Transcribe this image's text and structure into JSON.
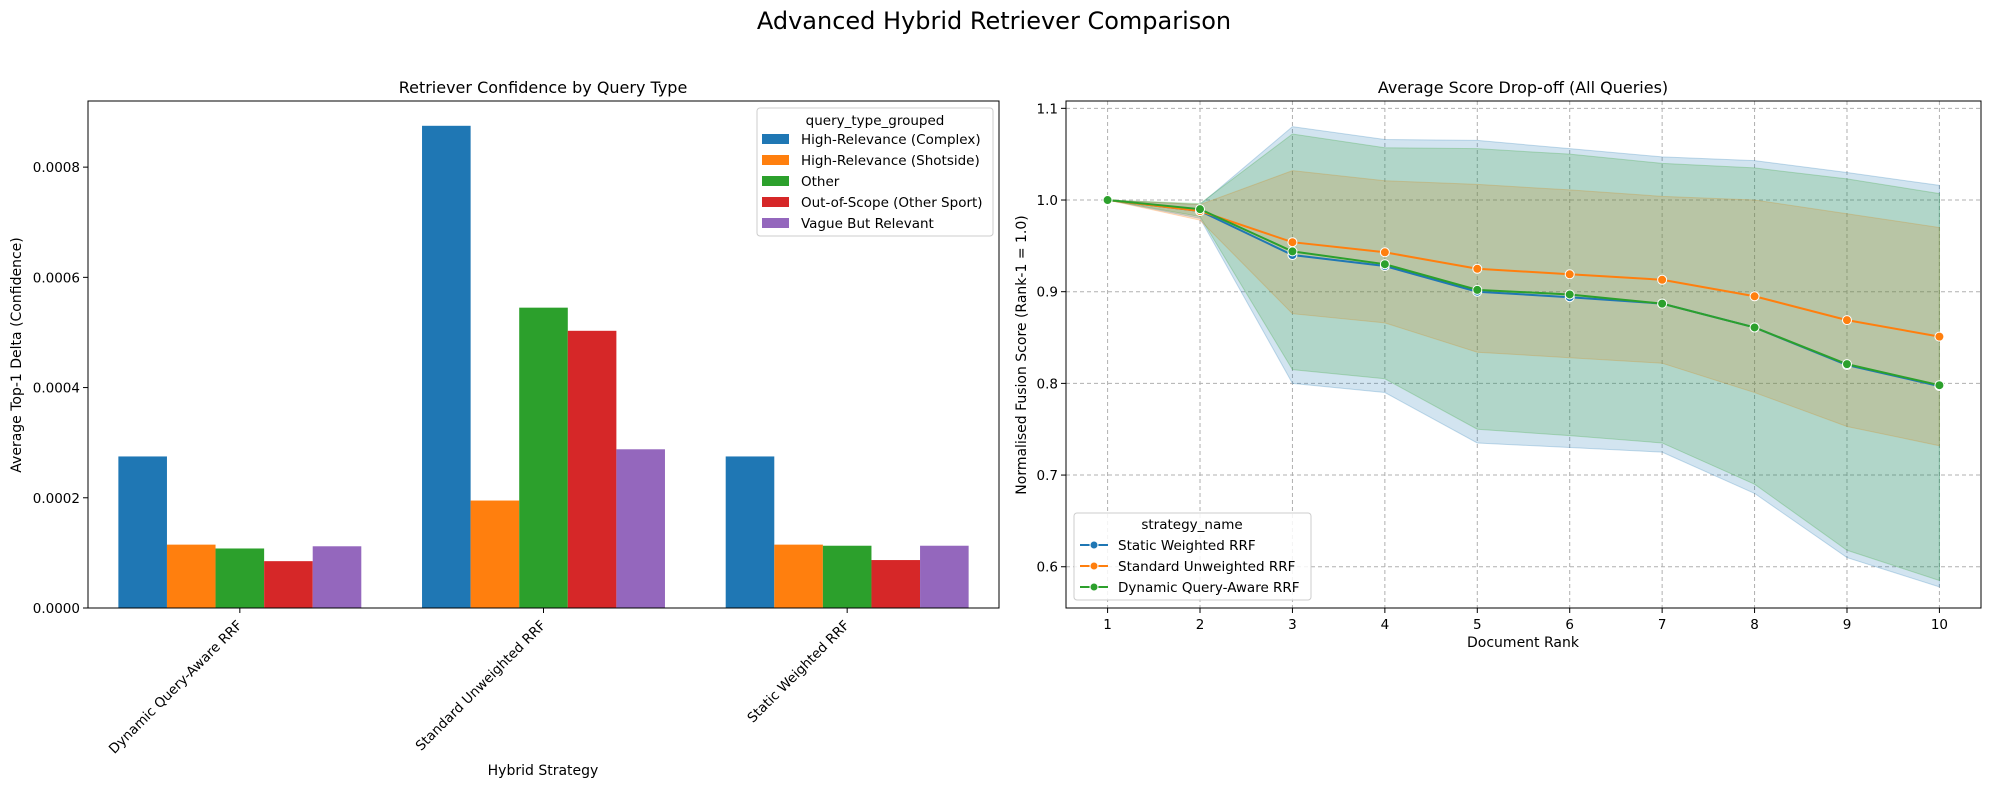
{
  "suptitle": "Advanced Hybrid Retriever Comparison",
  "chart_data": [
    {
      "type": "bar",
      "title": "Retriever Confidence by Query Type",
      "xlabel": "Hybrid Strategy",
      "ylabel": "Average Top-1 Delta (Confidence)",
      "ylim": [
        0,
        0.00092
      ],
      "yticks": [
        0.0,
        0.0002,
        0.0004,
        0.0006,
        0.0008
      ],
      "ytick_labels": [
        "0.0000",
        "0.0002",
        "0.0004",
        "0.0006",
        "0.0008"
      ],
      "categories": [
        "Dynamic Query-Aware RRF",
        "Standard Unweighted RRF",
        "Static Weighted RRF"
      ],
      "legend_title": "query_type_grouped",
      "legend_position": "top-right",
      "grid": false,
      "series": [
        {
          "name": "High-Relevance (Complex)",
          "color": "#1f77b4",
          "values": [
            0.000275,
            0.000875,
            0.000275
          ]
        },
        {
          "name": "High-Relevance (Shotside)",
          "color": "#ff7f0e",
          "values": [
            0.000115,
            0.000195,
            0.000115
          ]
        },
        {
          "name": "Other",
          "color": "#2ca02c",
          "values": [
            0.000108,
            0.000545,
            0.000113
          ]
        },
        {
          "name": "Out-of-Scope (Other Sport)",
          "color": "#d62728",
          "values": [
            8.5e-05,
            0.000503,
            8.7e-05
          ]
        },
        {
          "name": "Vague But Relevant",
          "color": "#9467bd",
          "values": [
            0.000112,
            0.000288,
            0.000113
          ]
        }
      ]
    },
    {
      "type": "line",
      "title": "Average Score Drop-off (All Queries)",
      "xlabel": "Document Rank",
      "ylabel": "Normalised Fusion Score (Rank-1 = 1.0)",
      "ylim": [
        0.555,
        1.108
      ],
      "xlim": [
        0.55,
        10.45
      ],
      "xticks": [
        1,
        2,
        3,
        4,
        5,
        6,
        7,
        8,
        9,
        10
      ],
      "xtick_labels": [
        "1",
        "2",
        "3",
        "4",
        "5",
        "6",
        "7",
        "8",
        "9",
        "10"
      ],
      "yticks": [
        0.6,
        0.7,
        0.8,
        0.9,
        1.0,
        1.1
      ],
      "ytick_labels": [
        "0.6",
        "0.7",
        "0.8",
        "0.9",
        "1.0",
        "1.1"
      ],
      "grid": true,
      "legend_title": "strategy_name",
      "legend_position": "bottom-left",
      "x": [
        1,
        2,
        3,
        4,
        5,
        6,
        7,
        8,
        9,
        10
      ],
      "series": [
        {
          "name": "Static Weighted RRF",
          "color": "#1f77b4",
          "values": [
            1.0,
            0.988,
            0.94,
            0.928,
            0.9,
            0.894,
            0.887,
            0.861,
            0.82,
            0.797
          ],
          "band_low": [
            1.0,
            0.98,
            0.8,
            0.79,
            0.735,
            0.73,
            0.725,
            0.68,
            0.61,
            0.578
          ],
          "band_high": [
            1.0,
            0.995,
            1.08,
            1.066,
            1.065,
            1.056,
            1.047,
            1.043,
            1.03,
            1.016
          ]
        },
        {
          "name": "Standard Unweighted RRF",
          "color": "#ff7f0e",
          "values": [
            1.0,
            0.988,
            0.954,
            0.943,
            0.925,
            0.919,
            0.913,
            0.895,
            0.869,
            0.851
          ],
          "band_low": [
            1.0,
            0.978,
            0.876,
            0.866,
            0.834,
            0.828,
            0.822,
            0.79,
            0.753,
            0.732
          ],
          "band_high": [
            1.0,
            0.995,
            1.032,
            1.021,
            1.017,
            1.011,
            1.004,
            1.0,
            0.985,
            0.97
          ]
        },
        {
          "name": "Dynamic Query-Aware RRF",
          "color": "#2ca02c",
          "values": [
            1.0,
            0.99,
            0.944,
            0.93,
            0.902,
            0.897,
            0.887,
            0.861,
            0.821,
            0.798
          ],
          "band_low": [
            1.0,
            0.982,
            0.815,
            0.805,
            0.75,
            0.743,
            0.735,
            0.69,
            0.618,
            0.585
          ],
          "band_high": [
            1.0,
            0.996,
            1.072,
            1.057,
            1.056,
            1.05,
            1.04,
            1.035,
            1.023,
            1.007
          ]
        }
      ]
    }
  ]
}
